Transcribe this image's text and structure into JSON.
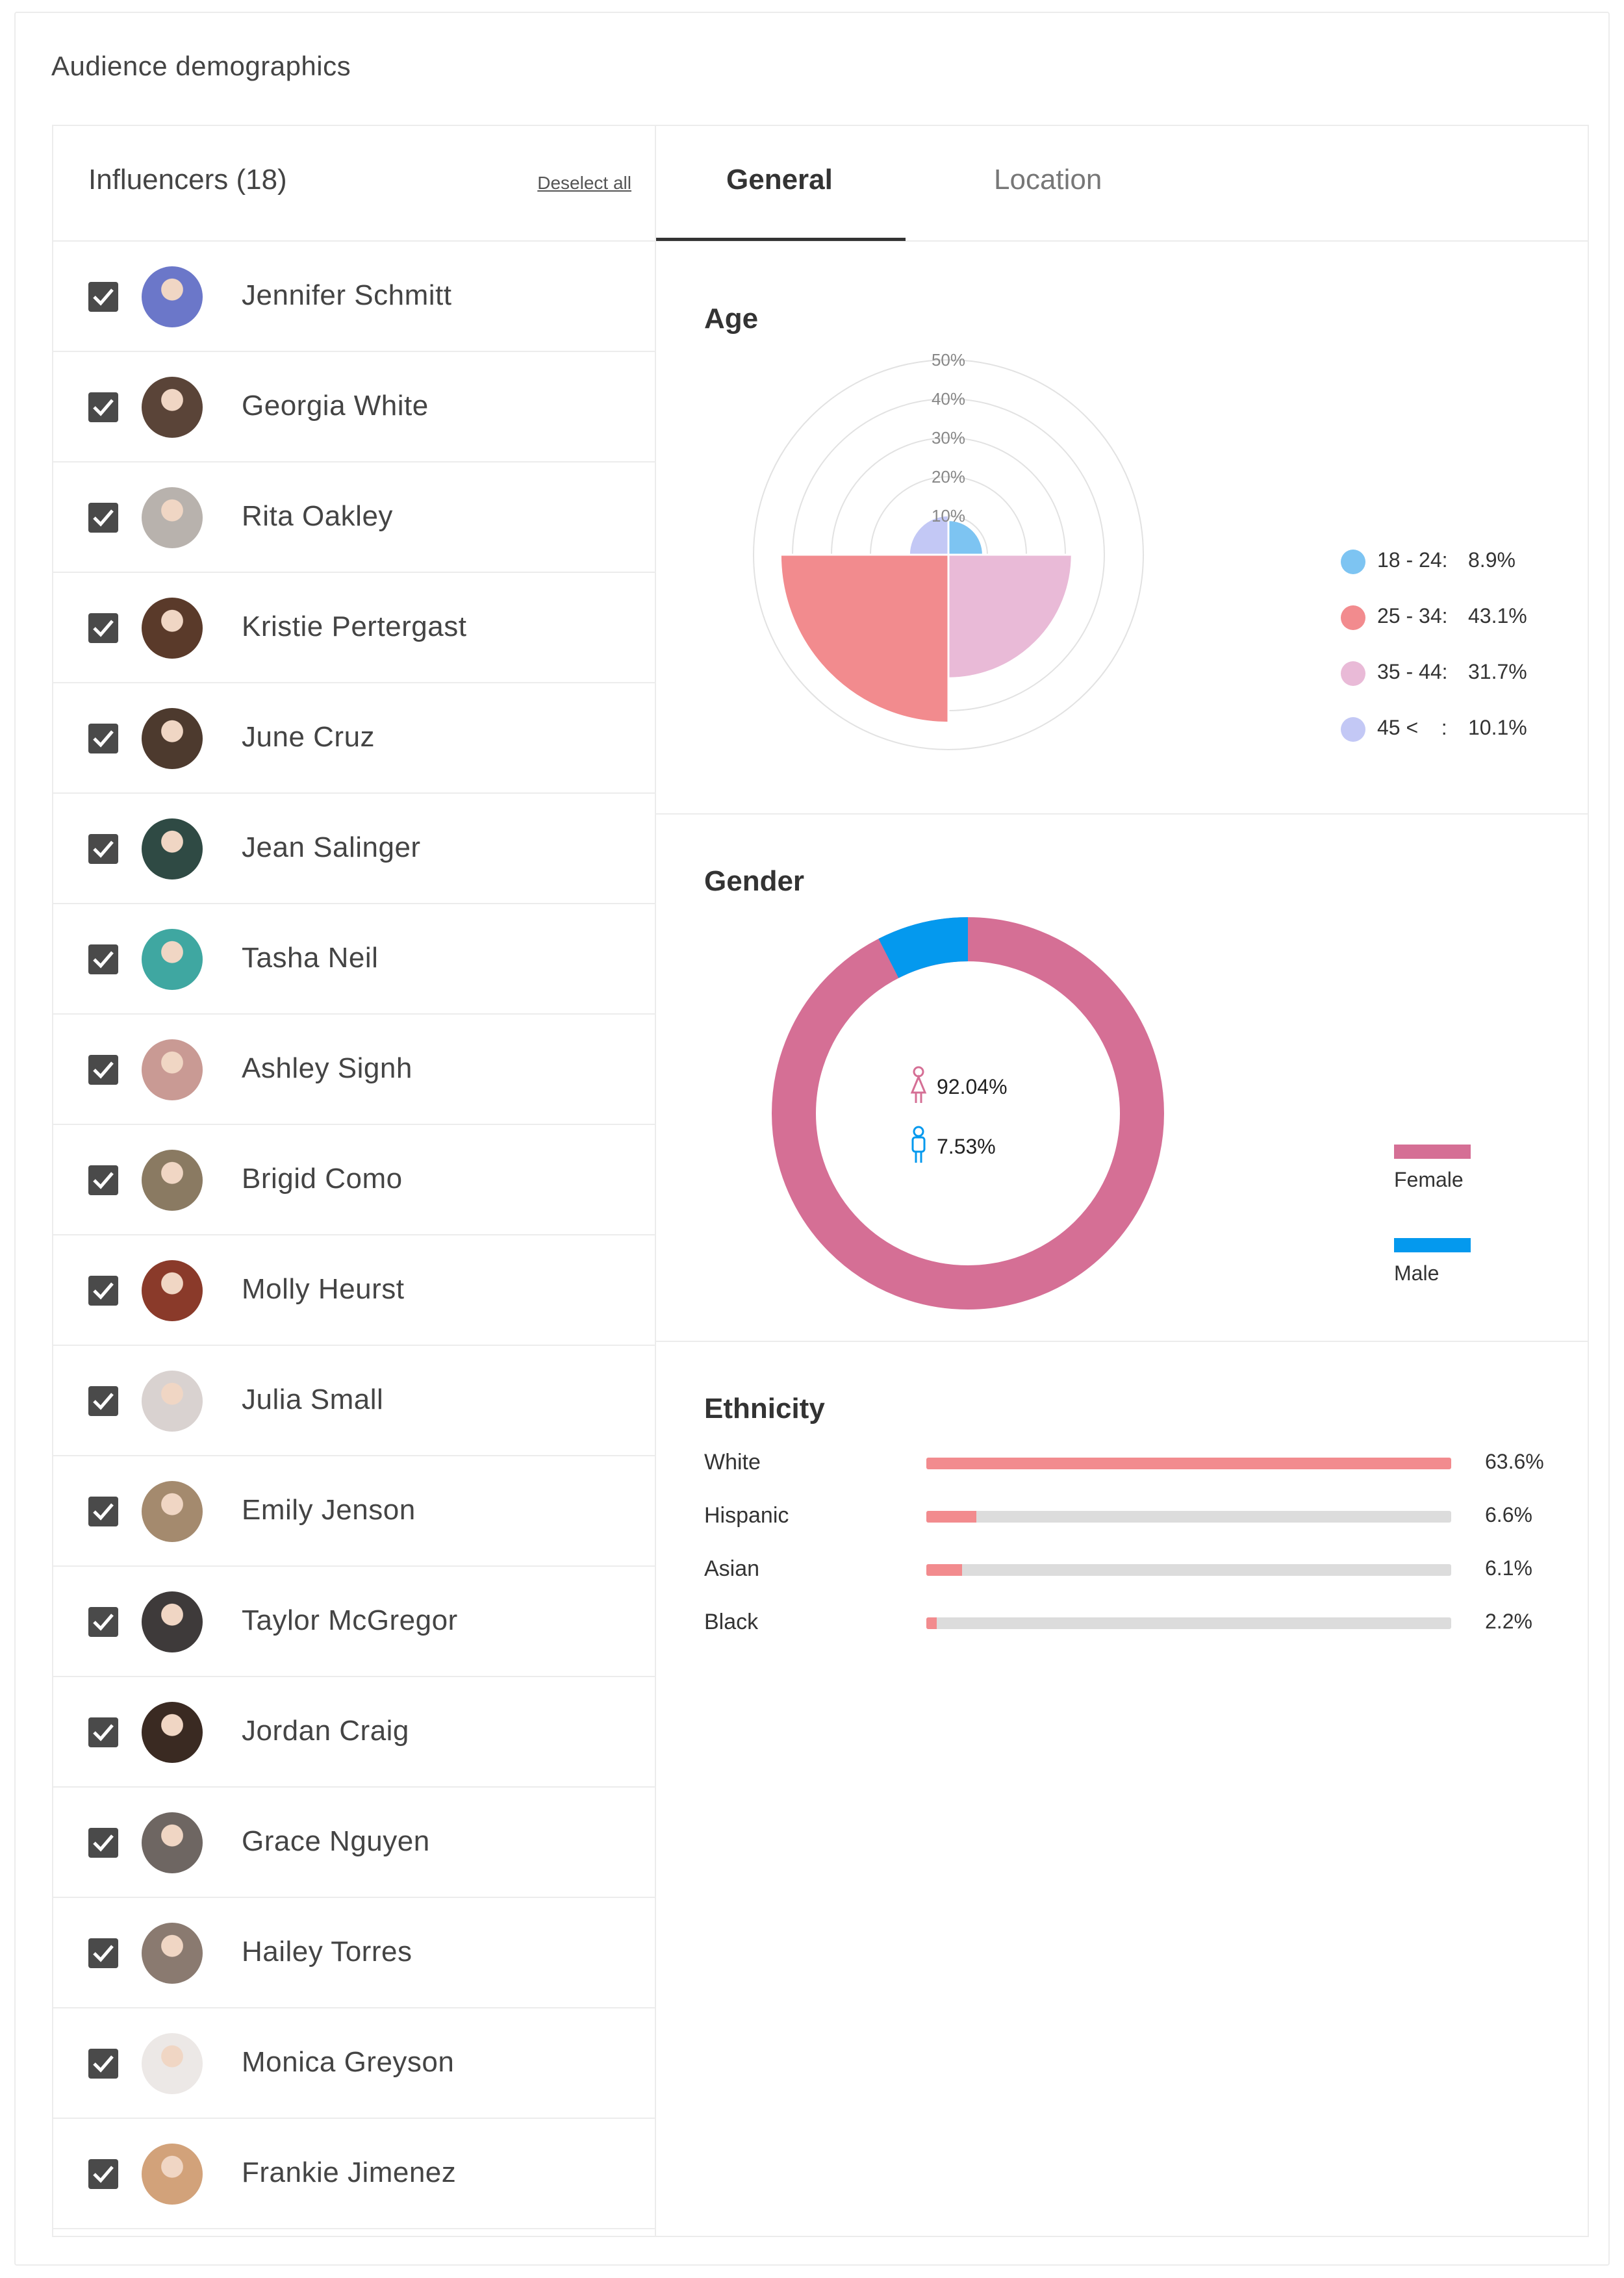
{
  "title": "Audience demographics",
  "influencers": {
    "header": "Influencers (18)",
    "deselect_label": "Deselect all",
    "items": [
      {
        "name": "Jennifer Schmitt",
        "color": "#6b77c9"
      },
      {
        "name": "Georgia White",
        "color": "#5a4438"
      },
      {
        "name": "Rita Oakley",
        "color": "#b8b2ad"
      },
      {
        "name": "Kristie Pertergast",
        "color": "#5a3a2a"
      },
      {
        "name": "June Cruz",
        "color": "#4d3a2e"
      },
      {
        "name": "Jean Salinger",
        "color": "#2f4a44"
      },
      {
        "name": "Tasha Neil",
        "color": "#3fa7a1"
      },
      {
        "name": "Ashley Signh",
        "color": "#c99a94"
      },
      {
        "name": "Brigid Como",
        "color": "#8a7a62"
      },
      {
        "name": "Molly Heurst",
        "color": "#8a3a2a"
      },
      {
        "name": "Julia Small",
        "color": "#d9d2d0"
      },
      {
        "name": "Emily Jenson",
        "color": "#a48a6e"
      },
      {
        "name": "Taylor McGregor",
        "color": "#3e3a3a"
      },
      {
        "name": "Jordan Craig",
        "color": "#3a2a22"
      },
      {
        "name": "Grace Nguyen",
        "color": "#6e6662"
      },
      {
        "name": "Hailey Torres",
        "color": "#8a7a70"
      },
      {
        "name": "Monica Greyson",
        "color": "#ece8e6"
      },
      {
        "name": "Frankie Jimenez",
        "color": "#d2a27a"
      }
    ]
  },
  "tabs": {
    "general": "General",
    "location": "Location"
  },
  "age": {
    "title": "Age",
    "rings": [
      "50%",
      "40%",
      "30%",
      "20%",
      "10%"
    ],
    "legend": [
      {
        "range": "18 - 24:",
        "value": "8.9%",
        "color": "#7dc4f2"
      },
      {
        "range": "25 - 34:",
        "value": "43.1%",
        "color": "#f28b8e"
      },
      {
        "range": "35 - 44:",
        "value": "31.7%",
        "color": "#e9bad7"
      },
      {
        "range": "45 <    :",
        "value": "10.1%",
        "color": "#c3c8f5"
      }
    ]
  },
  "gender": {
    "title": "Gender",
    "female_pct": "92.04%",
    "male_pct": "7.53%",
    "female_label": "Female",
    "male_label": "Male",
    "female_color": "#d56f95",
    "male_color": "#0499ee"
  },
  "ethnicity": {
    "title": "Ethnicity",
    "rows": [
      {
        "label": "White",
        "value": "63.6%",
        "fill": 1.0
      },
      {
        "label": "Hispanic",
        "value": "6.6%",
        "fill": 0.095
      },
      {
        "label": "Asian",
        "value": "6.1%",
        "fill": 0.068
      },
      {
        "label": "Black",
        "value": "2.2%",
        "fill": 0.02
      }
    ]
  }
}
